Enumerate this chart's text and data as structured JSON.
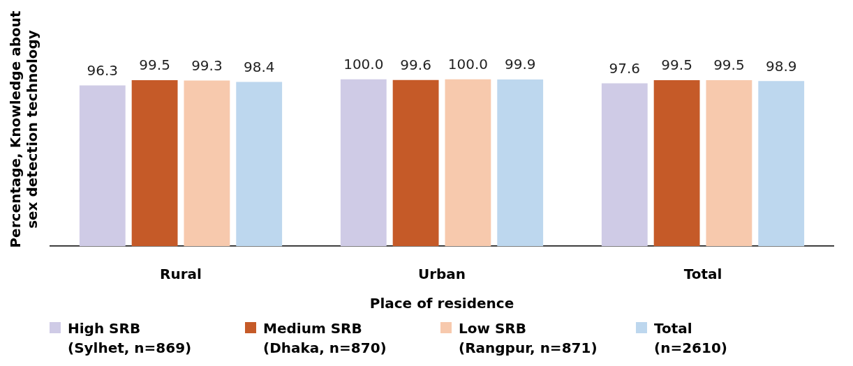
{
  "chart_data": {
    "type": "bar",
    "ylabel": "Percentage, Knowledge about sex detection technology",
    "xlabel": "Place of residence",
    "categories": [
      "Rural",
      "Urban",
      "Total"
    ],
    "grid": false,
    "legend": "bottom",
    "data_labels": true,
    "series": [
      {
        "name": "High SRB (Sylhet, n=869)",
        "color": "#cfcbe6",
        "values": [
          96.3,
          100.0,
          97.6
        ],
        "value_labels": [
          "96.3",
          "100.0",
          "97.6"
        ]
      },
      {
        "name": "Medium SRB (Dhaka, n=870)",
        "color": "#c55a28",
        "values": [
          99.5,
          99.6,
          99.5
        ],
        "value_labels": [
          "99.5",
          "99.6",
          "99.5"
        ]
      },
      {
        "name": "Low SRB (Rangpur, n=871)",
        "color": "#f7c9ad",
        "values": [
          99.3,
          100.0,
          99.5
        ],
        "value_labels": [
          "99.3",
          "100.0",
          "99.5"
        ]
      },
      {
        "name": "Total (n=2610)",
        "color": "#bdd7ee",
        "values": [
          98.4,
          99.9,
          98.9
        ],
        "value_labels": [
          "98.4",
          "99.9",
          "98.9"
        ]
      }
    ]
  }
}
